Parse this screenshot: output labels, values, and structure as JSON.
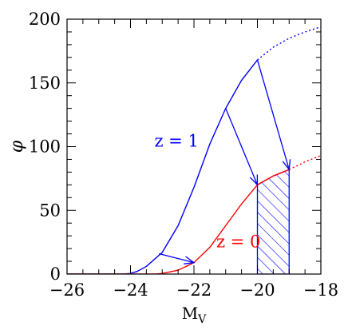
{
  "chart_data": {
    "type": "line",
    "xlabel": "M",
    "xlabel_subscript": "V",
    "ylabel": "φ",
    "xlim": [
      -26,
      -18
    ],
    "ylim": [
      0,
      200
    ],
    "x_ticks": [
      -26,
      -24,
      -22,
      -20,
      -18
    ],
    "x_tick_labels": [
      "−26",
      "−24",
      "−22",
      "−20",
      "−18"
    ],
    "y_ticks": [
      0,
      50,
      100,
      150,
      200
    ],
    "y_tick_labels": [
      "0",
      "50",
      "100",
      "150",
      "200"
    ],
    "series": [
      {
        "name": "z=1",
        "color": "#0000ff",
        "solid_x": [
          -26,
          -24.2,
          -24,
          -23.8,
          -23.5,
          -23,
          -22.5,
          -22,
          -21.5,
          -21,
          -20.5,
          -20
        ],
        "solid_y": [
          0,
          0,
          0.5,
          2,
          6,
          17,
          38,
          68,
          102,
          130,
          152,
          168
        ],
        "dashed_x": [
          -20,
          -19.5,
          -19,
          -18.5,
          -18
        ],
        "dashed_y": [
          168,
          178,
          185,
          190,
          194
        ]
      },
      {
        "name": "z=0",
        "color": "#ff0000",
        "solid_x": [
          -26,
          -23.2,
          -23,
          -22.5,
          -22,
          -21.5,
          -21,
          -20.5,
          -20,
          -19.5,
          -19
        ],
        "solid_y": [
          0,
          0,
          0.5,
          3,
          9,
          21,
          38,
          55,
          70,
          77,
          82
        ],
        "dashed_x": [
          -19,
          -18.5,
          -18
        ],
        "dashed_y": [
          82,
          88,
          93
        ]
      }
    ],
    "arrows": [
      {
        "from": [
          -23.1,
          16
        ],
        "to": [
          -22.0,
          9
        ]
      },
      {
        "from": [
          -21.0,
          130
        ],
        "to": [
          -20.0,
          70
        ]
      },
      {
        "from": [
          -20.0,
          168
        ],
        "to": [
          -19.0,
          82
        ]
      }
    ],
    "shaded_region": {
      "x_range": [
        -20,
        -19
      ],
      "pattern": "hatched",
      "color": "#0000ff"
    },
    "annotations": [
      {
        "text": "z = 1",
        "color": "#0000ff",
        "x": -22.55,
        "y": 100
      },
      {
        "text": "z = 0",
        "color": "#ff0000",
        "x": -20.6,
        "y": 21
      }
    ],
    "grid": false
  }
}
